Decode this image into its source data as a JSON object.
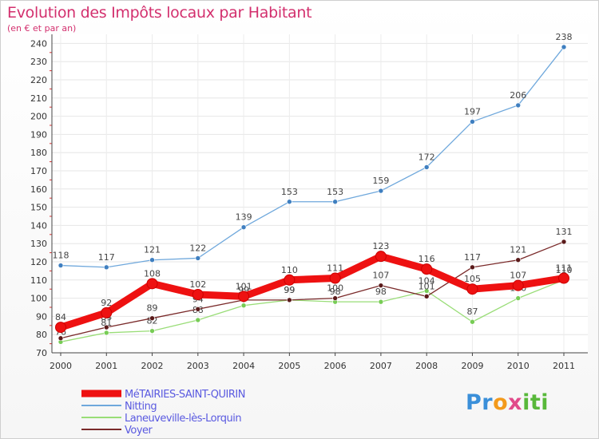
{
  "chart_data": {
    "type": "line",
    "title": "Evolution des Impôts locaux par Habitant",
    "subtitle": "(en € et par an)",
    "xlabel": "",
    "ylabel": "",
    "x": [
      "2000",
      "2001",
      "2002",
      "2003",
      "2004",
      "2005",
      "2006",
      "2007",
      "2008",
      "2009",
      "2010",
      "2011"
    ],
    "ylim": [
      70,
      245
    ],
    "yticks": [
      "70",
      "80",
      "90",
      "100",
      "110",
      "120",
      "130",
      "140",
      "150",
      "160",
      "170",
      "180",
      "190",
      "200",
      "210",
      "220",
      "230",
      "240"
    ],
    "legend_position": "bottom-left",
    "series": [
      {
        "name": "MéTAIRIES-SAINT-QUIRIN",
        "color": "#ee1111",
        "values": [
          84,
          92,
          108,
          102,
          101,
          110,
          111,
          123,
          116,
          105,
          107,
          111
        ]
      },
      {
        "name": "Nitting",
        "color": "#6fa8dc",
        "values": [
          118,
          117,
          121,
          122,
          139,
          153,
          153,
          159,
          172,
          197,
          206,
          238
        ]
      },
      {
        "name": "Laneuveville-lès-Lorquin",
        "color": "#99dd77",
        "values": [
          76,
          81,
          82,
          88,
          96,
          99,
          98,
          98,
          104,
          87,
          100,
          110
        ]
      },
      {
        "name": "Voyer",
        "color": "#7a2a2a",
        "values": [
          78,
          84,
          89,
          94,
          99,
          99,
          100,
          107,
          101,
          117,
          121,
          131
        ]
      }
    ]
  },
  "brand": {
    "p1": "Pr",
    "p2": "o",
    "p3": "x",
    "p4": "iti"
  }
}
